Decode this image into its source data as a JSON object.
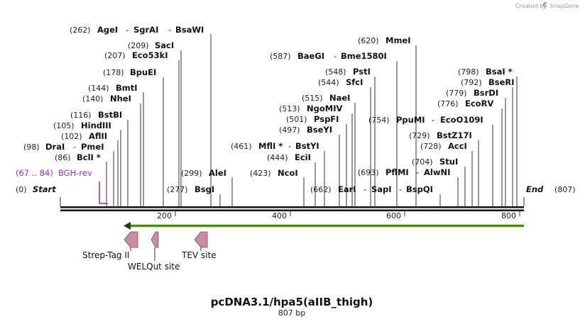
{
  "header": {
    "created_by": "Created by",
    "brand": "SnapGene"
  },
  "map": {
    "title": "pcDNA3.1/hpa5(aIIB_thigh)",
    "length_label": "807 bp",
    "total_bp": 807
  },
  "ends": {
    "start_label": "Start",
    "start_pos": "(0)",
    "end_label": "End",
    "end_pos": "(807)"
  },
  "axis": {
    "ticks": [
      200,
      400,
      600,
      800
    ],
    "tick_labels": [
      "200",
      "400",
      "600",
      "800"
    ]
  },
  "primer": {
    "name": "BGH-rev",
    "range": "(67 .. 84)",
    "start": 67,
    "end": 84,
    "color": "#8b2fc9"
  },
  "orf": {
    "start": 111,
    "end": 807,
    "color": "#6fbf2a"
  },
  "features": [
    {
      "name": "Strep-Tag II",
      "start": 111,
      "end": 135,
      "color": "#c98aa6"
    },
    {
      "name": "WELQut site",
      "start": 158,
      "end": 170,
      "color": "#c98aa6"
    },
    {
      "name": "TEV site",
      "start": 235,
      "end": 258,
      "color": "#c98aa6"
    }
  ],
  "site_rows": [
    {
      "pos": "(262)",
      "names": [
        "AgeI",
        "SgrAI",
        "BsaWI"
      ],
      "cuts": [
        262,
        262,
        262
      ]
    },
    {
      "pos": "(209)",
      "names": [
        "SacI"
      ],
      "cuts": [
        209
      ]
    },
    {
      "pos": "(207)",
      "names": [
        "Eco53kI"
      ],
      "cuts": [
        207
      ]
    },
    {
      "pos": "(178)",
      "names": [
        "BpuEI"
      ],
      "cuts": [
        178
      ]
    },
    {
      "pos": "(144)",
      "names": [
        "BmtI"
      ],
      "cuts": [
        144
      ]
    },
    {
      "pos": "(140)",
      "names": [
        "NheI"
      ],
      "cuts": [
        140
      ]
    },
    {
      "pos": "(116)",
      "names": [
        "BstBI"
      ],
      "cuts": [
        116
      ]
    },
    {
      "pos": "(105)",
      "names": [
        "HindIII"
      ],
      "cuts": [
        105
      ]
    },
    {
      "pos": "(102)",
      "names": [
        "AflII"
      ],
      "cuts": [
        102
      ]
    },
    {
      "pos": "(98)",
      "names": [
        "DraI",
        "PmeI"
      ],
      "cuts": [
        98,
        98
      ]
    },
    {
      "pos": "(86)",
      "names": [
        "BclI *"
      ],
      "cuts": [
        86
      ]
    },
    {
      "pos": "(299)",
      "names": [
        "AleI"
      ],
      "cuts": [
        299
      ]
    },
    {
      "pos": "(277)",
      "names": [
        "BsgI"
      ],
      "cuts": [
        277
      ]
    },
    {
      "pos": "(620)",
      "names": [
        "MmeI"
      ],
      "cuts": [
        620
      ]
    },
    {
      "pos": "(587)",
      "names": [
        "BaeGI",
        "Bme1580I"
      ],
      "cuts": [
        587,
        587
      ]
    },
    {
      "pos": "(548)",
      "names": [
        "PstI"
      ],
      "cuts": [
        548
      ]
    },
    {
      "pos": "(544)",
      "names": [
        "SfcI"
      ],
      "cuts": [
        544
      ]
    },
    {
      "pos": "(515)",
      "names": [
        "NaeI"
      ],
      "cuts": [
        515
      ]
    },
    {
      "pos": "(513)",
      "names": [
        "NgoMIV"
      ],
      "cuts": [
        513
      ]
    },
    {
      "pos": "(501)",
      "names": [
        "PspFI"
      ],
      "cuts": [
        501
      ]
    },
    {
      "pos": "(497)",
      "names": [
        "BseYI"
      ],
      "cuts": [
        497
      ]
    },
    {
      "pos": "(461)",
      "names": [
        "MflI *",
        "BstYI"
      ],
      "cuts": [
        461,
        461
      ]
    },
    {
      "pos": "(444)",
      "names": [
        "EciI"
      ],
      "cuts": [
        444
      ]
    },
    {
      "pos": "(423)",
      "names": [
        "NcoI"
      ],
      "cuts": [
        423
      ]
    },
    {
      "pos": "(754)",
      "names": [
        "PpuMI",
        "EcoO109I"
      ],
      "cuts": [
        754,
        754
      ]
    },
    {
      "pos": "(729)",
      "names": [
        "BstZ17I"
      ],
      "cuts": [
        729
      ]
    },
    {
      "pos": "(728)",
      "names": [
        "AccI"
      ],
      "cuts": [
        728
      ]
    },
    {
      "pos": "(704)",
      "names": [
        "StuI"
      ],
      "cuts": [
        704
      ]
    },
    {
      "pos": "(693)",
      "names": [
        "PflMI",
        "AlwNI"
      ],
      "cuts": [
        693,
        693
      ]
    },
    {
      "pos": "(662)",
      "names": [
        "EarI",
        "SapI",
        "BspQI"
      ],
      "cuts": [
        662,
        662,
        662
      ]
    },
    {
      "pos": "(798)",
      "names": [
        "BsaI *"
      ],
      "cuts": [
        798
      ]
    },
    {
      "pos": "(792)",
      "names": [
        "BseRI"
      ],
      "cuts": [
        792
      ]
    },
    {
      "pos": "(779)",
      "names": [
        "BsrDI"
      ],
      "cuts": [
        779
      ]
    },
    {
      "pos": "(776)",
      "names": [
        "EcoRV"
      ],
      "cuts": [
        776
      ]
    }
  ]
}
